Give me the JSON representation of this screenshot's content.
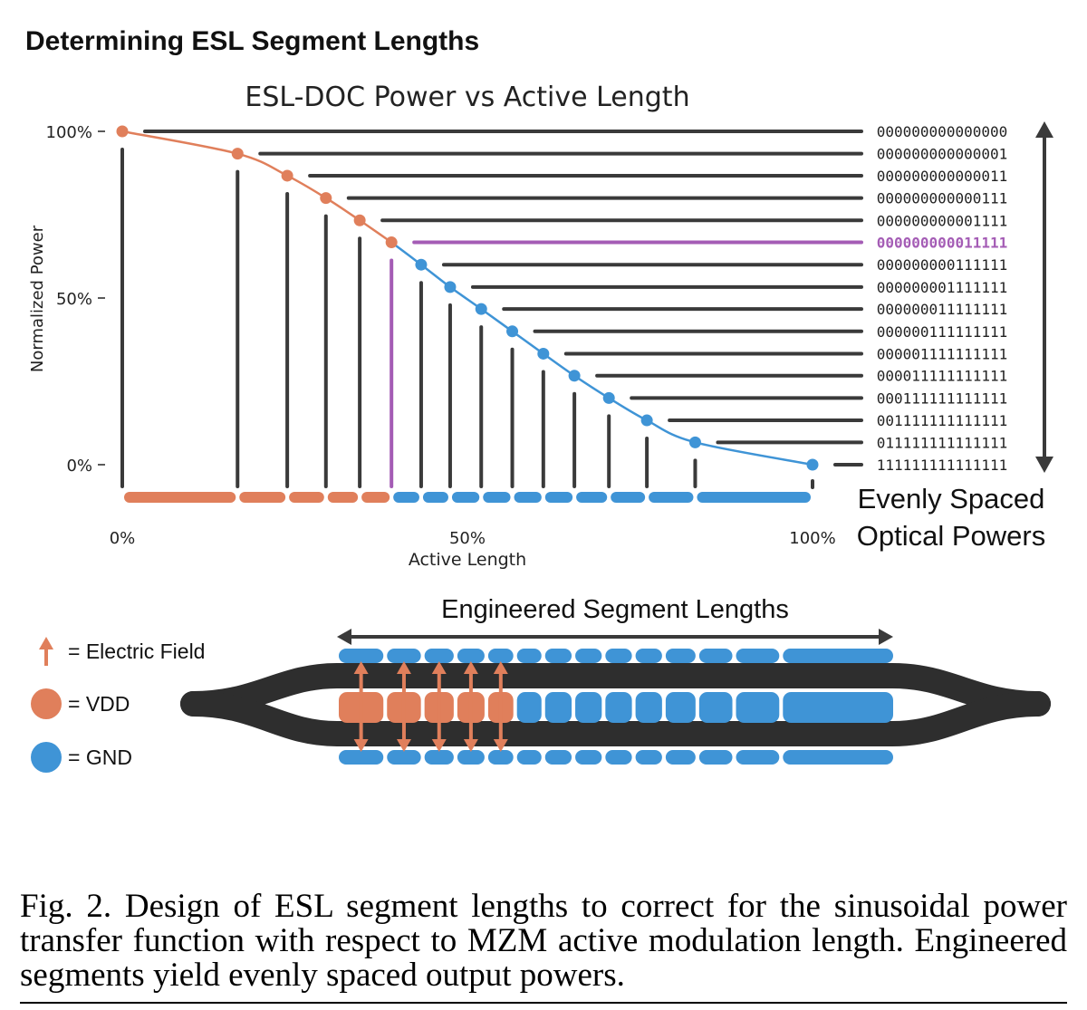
{
  "figure_title": "Determining ESL Segment Lengths",
  "chart_data": {
    "type": "line",
    "title": "ESL-DOC Power vs Active Length",
    "xlabel": "Active Length",
    "ylabel": "Normalized Power",
    "x_ticks": [
      "0%",
      "50%",
      "100%"
    ],
    "y_ticks": [
      "0%",
      "50%",
      "100%"
    ],
    "xlim": [
      0,
      100
    ],
    "ylim": [
      0,
      100
    ],
    "points": [
      {
        "x": 0,
        "y": 100,
        "code": "000000000000000",
        "group": "vdd"
      },
      {
        "x": 16.7,
        "y": 93.3,
        "code": "000000000000001",
        "group": "vdd"
      },
      {
        "x": 23.9,
        "y": 86.7,
        "code": "000000000000011",
        "group": "vdd"
      },
      {
        "x": 29.5,
        "y": 80.0,
        "code": "000000000000111",
        "group": "vdd"
      },
      {
        "x": 34.4,
        "y": 73.3,
        "code": "000000000001111",
        "group": "vdd"
      },
      {
        "x": 39.0,
        "y": 66.7,
        "code": "000000000011111",
        "group": "highlight"
      },
      {
        "x": 43.3,
        "y": 60.0,
        "code": "000000000111111",
        "group": "gnd"
      },
      {
        "x": 47.5,
        "y": 53.3,
        "code": "000000001111111",
        "group": "gnd"
      },
      {
        "x": 52.0,
        "y": 46.7,
        "code": "000000011111111",
        "group": "gnd"
      },
      {
        "x": 56.5,
        "y": 40.0,
        "code": "000000111111111",
        "group": "gnd"
      },
      {
        "x": 61.0,
        "y": 33.3,
        "code": "000001111111111",
        "group": "gnd"
      },
      {
        "x": 65.5,
        "y": 26.7,
        "code": "000011111111111",
        "group": "gnd"
      },
      {
        "x": 70.5,
        "y": 20.0,
        "code": "000111111111111",
        "group": "gnd"
      },
      {
        "x": 76.0,
        "y": 13.3,
        "code": "001111111111111",
        "group": "gnd"
      },
      {
        "x": 83.0,
        "y": 6.7,
        "code": "011111111111111",
        "group": "gnd"
      },
      {
        "x": 100,
        "y": 0,
        "code": "111111111111111",
        "group": "gnd"
      }
    ],
    "highlight_code": "000000000011111",
    "annotation": [
      "Evenly Spaced",
      "Optical Powers"
    ]
  },
  "mzm": {
    "title": "Engineered Segment Lengths",
    "vdd_segments": 5,
    "gnd_segments": 10
  },
  "legend": [
    {
      "label": "= Electric Field",
      "icon": "arrow-up-icon"
    },
    {
      "label": "= VDD",
      "icon": "vdd-dot-icon"
    },
    {
      "label": "= GND",
      "icon": "gnd-dot-icon"
    }
  ],
  "caption": "Fig. 2.   Design of ESL segment lengths to correct for the sinusoidal power transfer function with respect to MZM active modulation length. Engineered segments yield evenly spaced output powers.",
  "colors": {
    "vdd": "#E07F5B",
    "gnd": "#3F94D6",
    "highlight": "#A45CB5",
    "dark": "#3a3a3a"
  }
}
